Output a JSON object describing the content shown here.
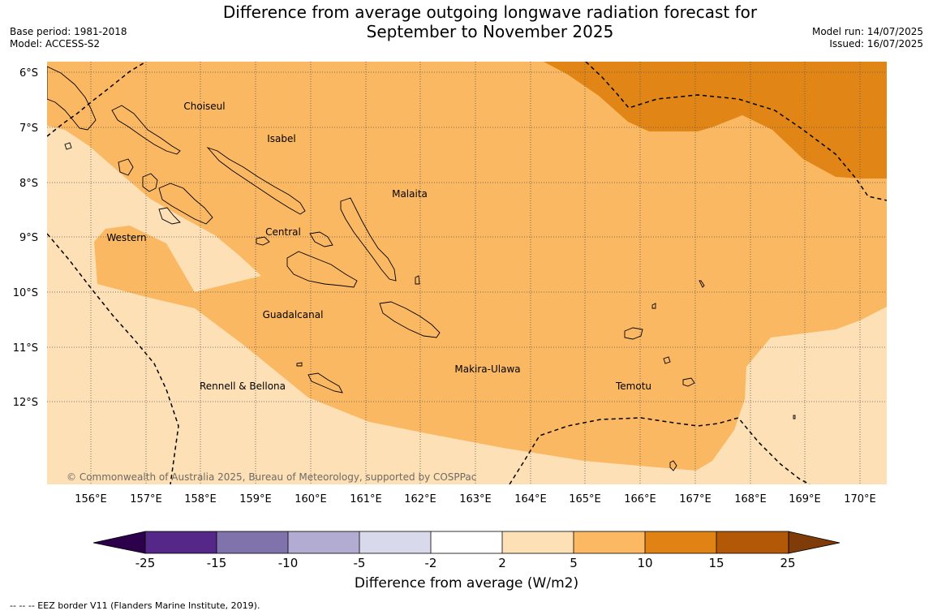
{
  "title": {
    "line1": "Difference from average outgoing longwave radiation forecast for",
    "line2": "September to November 2025"
  },
  "meta_left": {
    "base_period": "Base period: 1981-2018",
    "model": "Model: ACCESS-S2"
  },
  "meta_right": {
    "model_run": "Model run: 14/07/2025",
    "issued": "Issued: 16/07/2025"
  },
  "map": {
    "lat_labels": [
      "6°S",
      "7°S",
      "8°S",
      "9°S",
      "10°S",
      "11°S",
      "12°S"
    ],
    "lon_labels": [
      "156°E",
      "157°E",
      "158°E",
      "159°E",
      "160°E",
      "161°E",
      "162°E",
      "163°E",
      "164°E",
      "165°E",
      "166°E",
      "167°E",
      "168°E",
      "169°E",
      "170°E"
    ],
    "regions": [
      "Choiseul",
      "Isabel",
      "Malaita",
      "Western",
      "Central",
      "Guadalcanal",
      "Makira-Ulawa",
      "Rennell & Bellona",
      "Temotu"
    ],
    "copyright": "© Commonwealth of Australia 2025, Bureau of Meteorology, supported by COSPPac",
    "colors": {
      "band_2_5": "#fde0b6",
      "band_5_10": "#fbb862",
      "band_10_15": "#e08516",
      "grid": "#555555",
      "coast": "#000000"
    }
  },
  "colorbar": {
    "ticks": [
      "-25",
      "-15",
      "-10",
      "-5",
      "-2",
      "2",
      "5",
      "10",
      "15",
      "25"
    ],
    "colors": [
      "#2d004b",
      "#542788",
      "#8073ac",
      "#b2abd2",
      "#d8daeb",
      "#ffffff",
      "#fee0b6",
      "#fdb863",
      "#e08214",
      "#b35806",
      "#7f3b08"
    ],
    "label": "Difference from average (W/m2)"
  },
  "footnote": "--  --  -- EEZ border V11 (Flanders Marine Institute, 2019)."
}
